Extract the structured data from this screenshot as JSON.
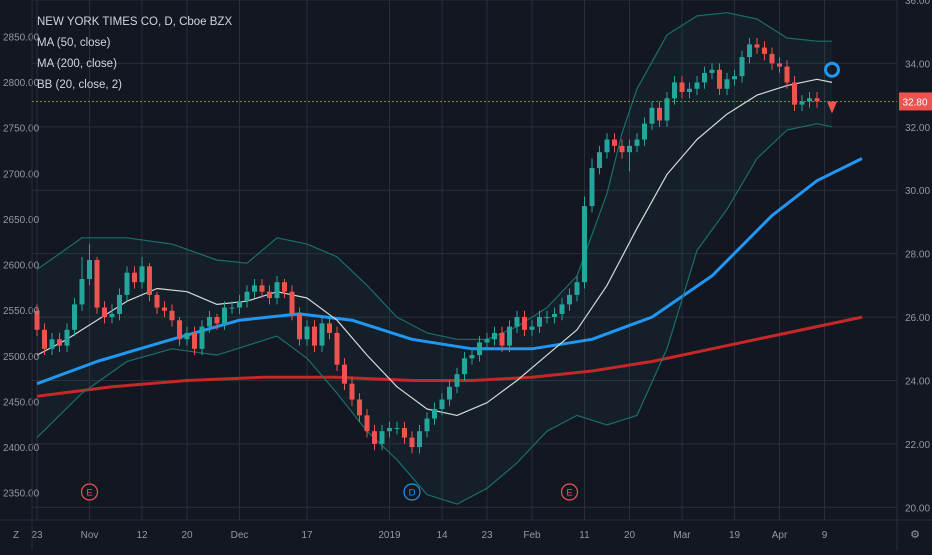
{
  "legend": {
    "symbol": "NEW YORK TIMES CO, D, Cboe BZX",
    "ma50": "MA (50, close)",
    "ma200": "MA (200, close)",
    "bb": "BB (20, close, 2)"
  },
  "price_badge": "32.80",
  "colors": {
    "background": "#131722",
    "grid": "#2a2e39",
    "up": "#26a69a",
    "down": "#ef5350",
    "ma50": "#2196f3",
    "ma200": "#c62828",
    "bb_mid": "#d8d8d8",
    "bb_band": "#1b6e6a",
    "text": "#9598a1",
    "event_red": "#ef5350",
    "event_blue": "#2196f3"
  },
  "events": [
    {
      "label": "E",
      "date": "Nov 1",
      "color": "red"
    },
    {
      "label": "D",
      "date": "Jan 9",
      "color": "blue"
    },
    {
      "label": "E",
      "date": "Feb 7",
      "color": "red"
    }
  ],
  "corner_labels": {
    "left": "Z",
    "right": "⚙"
  },
  "chart_data": {
    "type": "candlestick",
    "title": "NEW YORK TIMES CO, D, Cboe BZX",
    "left_axis": {
      "range": [
        2320,
        2890
      ],
      "ticks": [
        2350,
        2400,
        2450,
        2500,
        2550,
        2600,
        2650,
        2700,
        2750,
        2800,
        2850
      ],
      "tick_labels": [
        "2350.00",
        "2400.00",
        "2450.00",
        "2500.00",
        "2550.00",
        "2600.00",
        "2650.00",
        "2700.00",
        "2750.00",
        "2800.00",
        "2850.00"
      ]
    },
    "right_axis": {
      "range": [
        19.6,
        36.0
      ],
      "ticks": [
        20,
        22,
        24,
        26,
        28,
        30,
        32,
        34,
        36
      ],
      "tick_labels": [
        "20.00",
        "22.00",
        "24.00",
        "26.00",
        "28.00",
        "30.00",
        "32.00",
        "34.00",
        "36.00"
      ]
    },
    "x_ticks": [
      "23",
      "Nov",
      "12",
      "20",
      "Dec",
      "17",
      "2019",
      "14",
      "23",
      "Feb",
      "11",
      "20",
      "Mar",
      "19",
      "Apr",
      "9"
    ],
    "last_price": 32.8,
    "candles": {
      "open": [
        26.2,
        25.6,
        25.0,
        25.3,
        25.1,
        25.6,
        26.4,
        27.2,
        27.8,
        26.3,
        26.0,
        26.1,
        26.7,
        27.4,
        27.1,
        27.6,
        26.7,
        26.3,
        26.2,
        25.9,
        25.3,
        25.5,
        25.0,
        25.7,
        26.0,
        25.8,
        26.3,
        26.3,
        26.5,
        26.8,
        27.0,
        26.8,
        26.6,
        27.1,
        26.8,
        26.1,
        25.3,
        25.7,
        25.1,
        25.8,
        25.5,
        24.5,
        23.9,
        23.4,
        22.9,
        22.4,
        22.0,
        22.4,
        22.5,
        22.5,
        22.2,
        21.9,
        22.4,
        22.8,
        23.1,
        23.4,
        23.8,
        24.2,
        24.7,
        24.8,
        25.2,
        25.3,
        25.5,
        25.1,
        25.7,
        26.0,
        25.6,
        25.7,
        26.0,
        26.0,
        26.1,
        26.4,
        26.7,
        27.1,
        29.5,
        30.7,
        31.2,
        31.6,
        31.4,
        31.2,
        31.4,
        31.6,
        32.1,
        32.6,
        32.2,
        32.9,
        33.4,
        33.1,
        33.2,
        33.4,
        33.7,
        33.8,
        33.2,
        33.5,
        33.6,
        34.2,
        34.6,
        34.5,
        34.3,
        34.0,
        33.9,
        33.4,
        32.7,
        32.8,
        32.9
      ],
      "close": [
        25.6,
        25.0,
        25.3,
        25.1,
        25.6,
        26.4,
        27.2,
        27.8,
        26.3,
        26.0,
        26.1,
        26.7,
        27.4,
        27.1,
        27.6,
        26.7,
        26.3,
        26.2,
        25.9,
        25.3,
        25.5,
        25.0,
        25.7,
        26.0,
        25.8,
        26.3,
        26.3,
        26.5,
        26.8,
        27.0,
        26.8,
        26.6,
        27.1,
        26.8,
        26.1,
        25.3,
        25.7,
        25.1,
        25.8,
        25.5,
        24.5,
        23.9,
        23.4,
        22.9,
        22.4,
        22.0,
        22.4,
        22.5,
        22.5,
        22.2,
        21.9,
        22.4,
        22.8,
        23.1,
        23.4,
        23.8,
        24.2,
        24.7,
        24.8,
        25.2,
        25.3,
        25.5,
        25.1,
        25.7,
        26.0,
        25.6,
        25.7,
        26.0,
        26.0,
        26.1,
        26.4,
        26.7,
        27.1,
        29.5,
        30.7,
        31.2,
        31.6,
        31.4,
        31.2,
        31.4,
        31.6,
        32.1,
        32.6,
        32.2,
        32.9,
        33.4,
        33.1,
        33.2,
        33.4,
        33.7,
        33.8,
        33.2,
        33.5,
        33.6,
        34.2,
        34.6,
        34.5,
        34.3,
        34.0,
        33.9,
        33.4,
        32.7,
        32.8,
        32.9,
        32.8
      ],
      "high": [
        26.4,
        25.8,
        25.5,
        25.5,
        25.8,
        26.6,
        27.9,
        28.3,
        27.9,
        26.5,
        26.4,
        26.9,
        27.6,
        27.6,
        27.9,
        27.7,
        26.8,
        26.5,
        26.4,
        26.0,
        25.7,
        25.7,
        25.9,
        26.2,
        26.1,
        26.5,
        26.5,
        26.7,
        27.0,
        27.2,
        27.2,
        27.0,
        27.3,
        27.2,
        27.0,
        26.3,
        25.9,
        25.9,
        26.0,
        26.0,
        25.7,
        24.7,
        24.1,
        23.6,
        23.1,
        22.6,
        22.6,
        22.7,
        22.7,
        22.7,
        22.4,
        22.6,
        23.0,
        23.3,
        23.6,
        24.0,
        24.4,
        24.9,
        25.0,
        25.4,
        25.5,
        25.7,
        25.7,
        25.9,
        26.2,
        26.2,
        25.9,
        26.2,
        26.2,
        26.3,
        26.6,
        26.9,
        27.3,
        29.8,
        31.0,
        31.4,
        31.8,
        31.8,
        31.6,
        31.6,
        31.8,
        32.3,
        32.8,
        32.8,
        33.1,
        33.6,
        33.6,
        33.4,
        33.6,
        33.9,
        34.0,
        34.0,
        33.7,
        33.8,
        34.4,
        34.8,
        34.8,
        34.7,
        34.5,
        34.2,
        34.1,
        33.6,
        33.0,
        33.1,
        33.1
      ],
      "low": [
        25.4,
        24.8,
        24.8,
        24.9,
        24.9,
        25.4,
        26.2,
        27.0,
        26.1,
        25.8,
        25.8,
        25.9,
        26.5,
        26.9,
        26.9,
        26.5,
        26.1,
        26.0,
        25.7,
        25.1,
        25.1,
        24.8,
        24.8,
        25.5,
        25.6,
        25.6,
        26.1,
        26.1,
        26.3,
        26.6,
        26.6,
        26.4,
        26.4,
        26.6,
        25.9,
        25.1,
        25.1,
        24.9,
        24.9,
        25.3,
        24.3,
        23.7,
        23.2,
        22.7,
        22.2,
        21.8,
        21.8,
        22.2,
        22.3,
        22.0,
        21.7,
        21.7,
        22.2,
        22.6,
        22.9,
        23.2,
        23.6,
        24.0,
        24.5,
        24.6,
        25.0,
        25.1,
        24.9,
        24.9,
        25.5,
        25.4,
        25.4,
        25.5,
        25.8,
        25.8,
        25.9,
        26.2,
        26.5,
        26.9,
        29.3,
        30.5,
        31.0,
        31.2,
        31.0,
        30.6,
        31.2,
        31.4,
        31.9,
        32.0,
        32.0,
        32.7,
        32.9,
        32.9,
        33.0,
        33.2,
        33.5,
        33.0,
        33.0,
        33.3,
        33.4,
        34.0,
        34.3,
        34.1,
        33.8,
        33.7,
        33.2,
        32.5,
        32.5,
        32.6,
        32.6
      ]
    },
    "series": [
      {
        "name": "MA (50, close)",
        "type": "line",
        "color": "#2196f3",
        "points": [
          [
            0,
            23.9
          ],
          [
            8,
            24.6
          ],
          [
            18,
            25.3
          ],
          [
            27,
            25.9
          ],
          [
            35,
            26.1
          ],
          [
            42,
            25.9
          ],
          [
            50,
            25.3
          ],
          [
            58,
            25.0
          ],
          [
            66,
            25.0
          ],
          [
            74,
            25.3
          ],
          [
            82,
            26.0
          ],
          [
            90,
            27.3
          ],
          [
            98,
            29.2
          ],
          [
            104,
            30.3
          ],
          [
            110,
            31.0
          ]
        ]
      },
      {
        "name": "MA (200, close)",
        "type": "line",
        "color": "#c62828",
        "points": [
          [
            0,
            23.5
          ],
          [
            10,
            23.8
          ],
          [
            20,
            24.0
          ],
          [
            30,
            24.1
          ],
          [
            40,
            24.1
          ],
          [
            50,
            24.0
          ],
          [
            58,
            24.0
          ],
          [
            66,
            24.1
          ],
          [
            74,
            24.3
          ],
          [
            82,
            24.6
          ],
          [
            90,
            25.0
          ],
          [
            98,
            25.4
          ],
          [
            104,
            25.7
          ],
          [
            110,
            26.0
          ]
        ]
      },
      {
        "name": "BB basis",
        "type": "line",
        "color": "#d8d8d8",
        "points": [
          [
            0,
            24.8
          ],
          [
            4,
            25.3
          ],
          [
            8,
            25.9
          ],
          [
            12,
            26.5
          ],
          [
            16,
            26.9
          ],
          [
            20,
            26.8
          ],
          [
            24,
            26.4
          ],
          [
            28,
            26.5
          ],
          [
            32,
            26.8
          ],
          [
            36,
            26.6
          ],
          [
            40,
            25.9
          ],
          [
            44,
            24.8
          ],
          [
            48,
            23.8
          ],
          [
            52,
            23.1
          ],
          [
            56,
            22.9
          ],
          [
            60,
            23.3
          ],
          [
            64,
            24.0
          ],
          [
            68,
            24.8
          ],
          [
            72,
            25.6
          ],
          [
            76,
            27.0
          ],
          [
            80,
            28.8
          ],
          [
            84,
            30.5
          ],
          [
            88,
            31.6
          ],
          [
            92,
            32.4
          ],
          [
            96,
            33.0
          ],
          [
            100,
            33.3
          ],
          [
            104,
            33.5
          ],
          [
            106,
            33.4
          ]
        ]
      },
      {
        "name": "BB upper",
        "type": "line",
        "color": "#1b6e6a",
        "points": [
          [
            0,
            27.5
          ],
          [
            6,
            28.5
          ],
          [
            12,
            28.5
          ],
          [
            18,
            28.3
          ],
          [
            24,
            27.8
          ],
          [
            28,
            27.7
          ],
          [
            32,
            28.5
          ],
          [
            36,
            28.3
          ],
          [
            40,
            27.9
          ],
          [
            44,
            27.0
          ],
          [
            48,
            26.0
          ],
          [
            52,
            25.5
          ],
          [
            56,
            25.3
          ],
          [
            60,
            25.3
          ],
          [
            64,
            25.7
          ],
          [
            68,
            26.3
          ],
          [
            72,
            27.3
          ],
          [
            76,
            29.9
          ],
          [
            78,
            31.8
          ],
          [
            80,
            33.2
          ],
          [
            84,
            34.9
          ],
          [
            88,
            35.5
          ],
          [
            92,
            35.6
          ],
          [
            96,
            35.4
          ],
          [
            100,
            34.8
          ],
          [
            104,
            34.7
          ],
          [
            106,
            34.7
          ]
        ]
      },
      {
        "name": "BB lower",
        "type": "line",
        "color": "#1b6e6a",
        "points": [
          [
            0,
            22.2
          ],
          [
            6,
            23.6
          ],
          [
            12,
            24.6
          ],
          [
            18,
            25.0
          ],
          [
            24,
            24.8
          ],
          [
            28,
            25.1
          ],
          [
            32,
            25.4
          ],
          [
            36,
            24.7
          ],
          [
            40,
            23.6
          ],
          [
            44,
            22.4
          ],
          [
            48,
            21.5
          ],
          [
            52,
            20.4
          ],
          [
            56,
            20.1
          ],
          [
            60,
            20.6
          ],
          [
            64,
            21.4
          ],
          [
            68,
            22.4
          ],
          [
            72,
            22.9
          ],
          [
            76,
            22.6
          ],
          [
            80,
            22.9
          ],
          [
            84,
            25.0
          ],
          [
            88,
            28.1
          ],
          [
            92,
            29.4
          ],
          [
            96,
            31.0
          ],
          [
            100,
            31.9
          ],
          [
            104,
            32.1
          ],
          [
            106,
            32.0
          ]
        ]
      }
    ]
  }
}
